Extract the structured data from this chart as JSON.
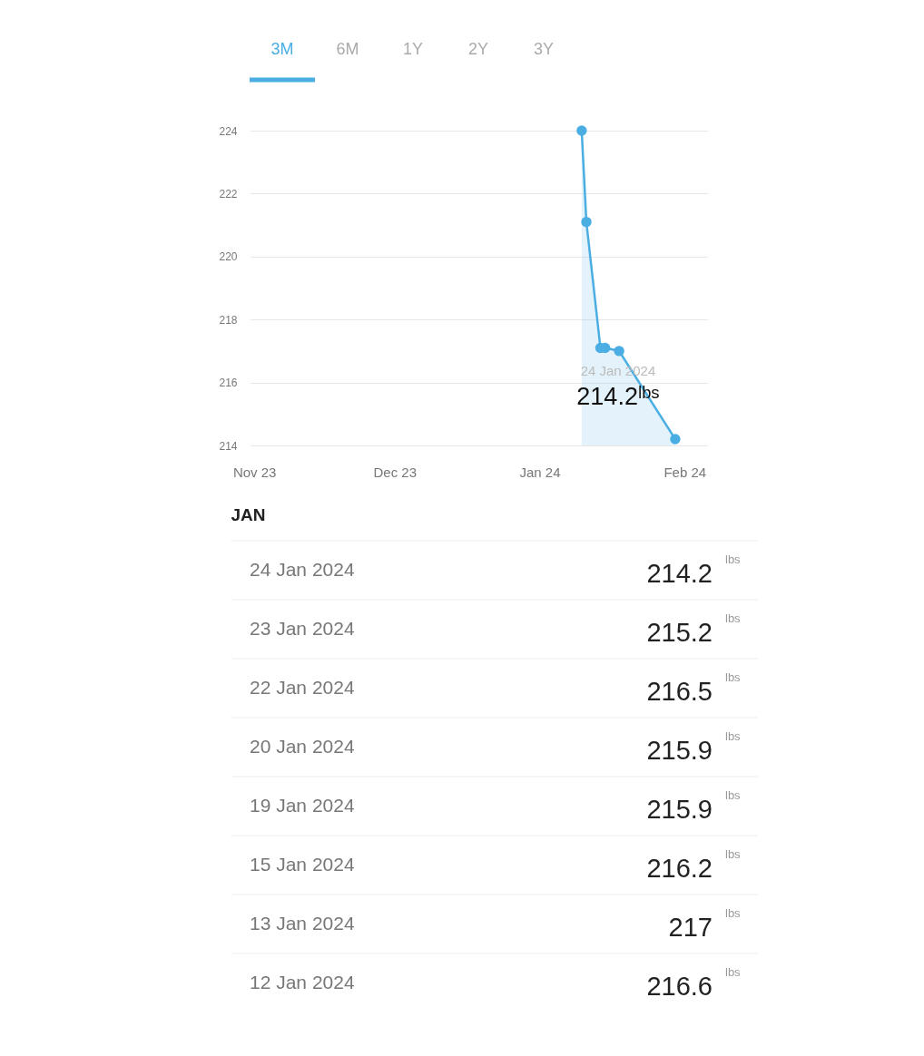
{
  "chart_data": [
    {
      "type": "area",
      "x": [
        "2024-01-10",
        "2024-01-11",
        "2024-01-14",
        "2024-01-15",
        "2024-01-18",
        "2024-01-30"
      ],
      "series": [
        {
          "color": "#4aaee3",
          "values": [
            224.0,
            221.1,
            217.1,
            217.1,
            217.0,
            214.2
          ]
        }
      ],
      "xlim": [
        "2023-10-31",
        "2024-02-06"
      ],
      "xticks": [
        {
          "value": "2023-11-01",
          "label": "Nov 23"
        },
        {
          "value": "2023-12-01",
          "label": "Dec 23"
        },
        {
          "value": "2024-01-01",
          "label": "Jan 24"
        },
        {
          "value": "2024-02-01",
          "label": "Feb 24"
        }
      ],
      "ylim": [
        214,
        224
      ],
      "yticks": [
        214,
        216,
        218,
        220,
        222,
        224
      ],
      "grid": "y",
      "marker": "circle",
      "annotations": [
        "3M",
        "6M",
        "1Y",
        "2Y",
        "3Y",
        "24 Jan 2024",
        "214.2ˡᵇˢ"
      ]
    },
    {
      "type": "other",
      "title": "JAN",
      "categories": [
        "24 Jan 2024",
        "23 Jan 2024",
        "22 Jan 2024",
        "20 Jan 2024",
        "19 Jan 2024",
        "15 Jan 2024",
        "13 Jan 2024",
        "12 Jan 2024"
      ],
      "values": [
        214.2,
        215.2,
        216.5,
        215.9,
        215.9,
        216.2,
        217,
        216.6
      ],
      "data_labels": true,
      "annotations": [
        "lbs"
      ]
    }
  ]
}
